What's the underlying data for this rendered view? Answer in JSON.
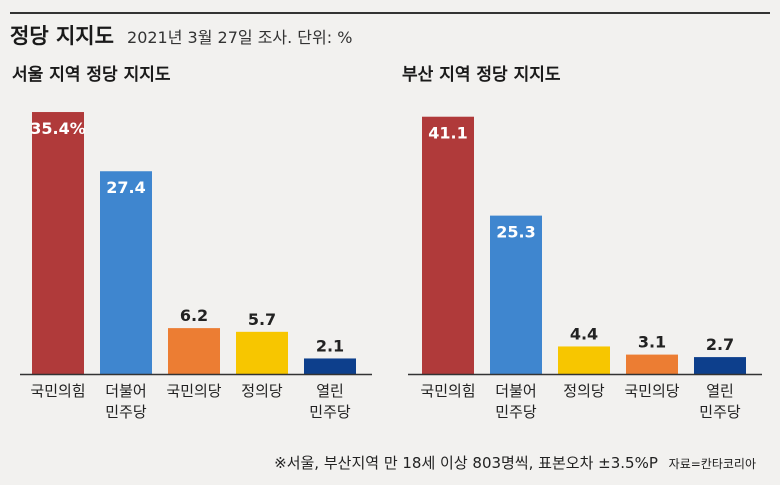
{
  "header": {
    "title": "정당 지지도",
    "subtitle": "2021년 3월 27일 조사. 단위: %"
  },
  "colors": {
    "background": "#f2f1ef",
    "baseline": "#333333",
    "label_light": "#ffffff",
    "label_dark": "#222222"
  },
  "chart_data": [
    {
      "type": "bar",
      "title": "서울 지역 정당 지지도",
      "unit": "%",
      "categories": [
        "국민의힘",
        "더불어\n민주당",
        "국민의당",
        "정의당",
        "열린\n민주당"
      ],
      "values": [
        35.4,
        27.4,
        6.2,
        5.7,
        2.1
      ],
      "value_labels": [
        "35.4%",
        "27.4",
        "6.2",
        "5.7",
        "2.1"
      ],
      "colors": [
        "#b03a3a",
        "#3f86cf",
        "#ec7d33",
        "#f7c600",
        "#0d3f8c"
      ],
      "ylim": [
        0,
        35.4
      ]
    },
    {
      "type": "bar",
      "title": "부산 지역 정당 지지도",
      "unit": "%",
      "categories": [
        "국민의힘",
        "더불어\n민주당",
        "정의당",
        "국민의당",
        "열린\n민주당"
      ],
      "values": [
        41.1,
        25.3,
        4.4,
        3.1,
        2.7
      ],
      "value_labels": [
        "41.1",
        "25.3",
        "4.4",
        "3.1",
        "2.7"
      ],
      "colors": [
        "#b03a3a",
        "#3f86cf",
        "#f7c600",
        "#ec7d33",
        "#0d3f8c"
      ],
      "ylim": [
        0,
        41.1
      ]
    }
  ],
  "footnote": {
    "text": "※서울, 부산지역 만 18세 이상 803명씩, 표본오차 ±3.5%P",
    "source": "자료=칸타코리아"
  }
}
